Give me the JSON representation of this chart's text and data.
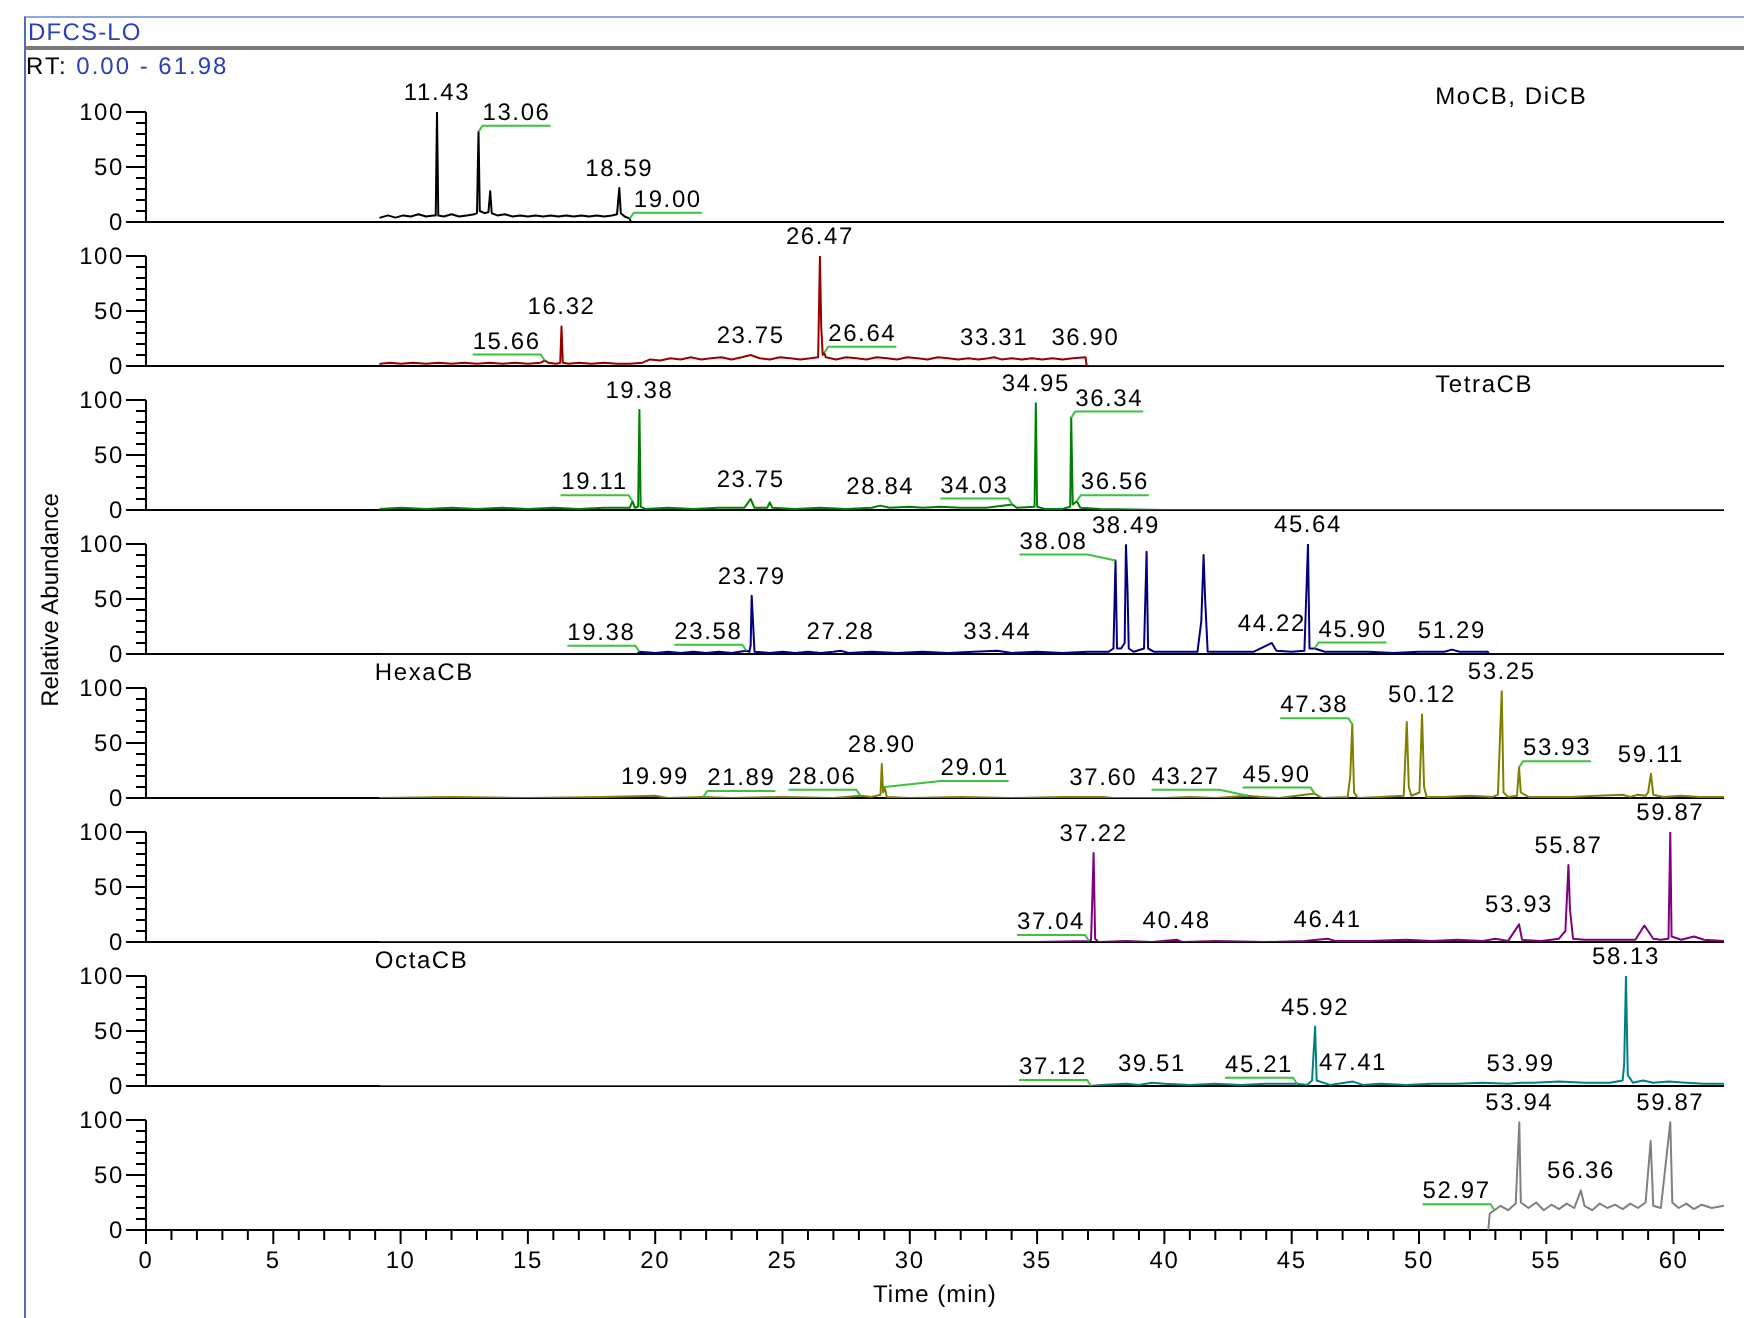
{
  "chart_data": [
    {
      "type": "line",
      "title": "DFCS-LO",
      "subtitle": "RT: 0.00 - 61.98",
      "x": [
        9.2,
        9.5,
        9.8,
        10.1,
        10.4,
        10.7,
        11.0,
        11.3,
        11.38,
        11.43,
        11.48,
        11.7,
        12.0,
        12.3,
        12.6,
        12.9,
        13.0,
        13.06,
        13.11,
        13.3,
        13.45,
        13.52,
        13.58,
        13.8,
        14.1,
        14.4,
        14.7,
        15.0,
        15.3,
        15.6,
        15.9,
        16.2,
        16.5,
        16.8,
        17.1,
        17.4,
        17.7,
        18.0,
        18.3,
        18.5,
        18.59,
        18.65,
        18.8,
        19.0,
        19.05
      ],
      "series": [
        {
          "name": "MoCB, DiCB",
          "color": "#000000",
          "values": [
            4,
            6,
            4,
            6,
            5,
            7,
            5,
            6,
            6,
            100,
            6,
            5,
            7,
            5,
            6,
            7,
            8,
            82,
            10,
            8,
            9,
            28,
            8,
            6,
            7,
            5,
            6,
            5,
            6,
            5,
            6,
            5,
            6,
            5,
            6,
            5,
            6,
            5,
            6,
            7,
            31,
            8,
            5,
            3,
            0
          ]
        }
      ],
      "xlim": [
        0,
        61.98
      ],
      "ylim": [
        0,
        100
      ],
      "yticks": [
        0,
        {
          "value": 10,
          "label": null
        },
        {
          "value": 20,
          "label": null
        },
        {
          "value": 30,
          "label": null
        },
        {
          "value": 40,
          "label": null
        },
        50,
        {
          "value": 60,
          "label": null
        },
        {
          "value": 70,
          "label": null
        },
        {
          "value": 80,
          "label": null
        },
        {
          "value": 90,
          "label": null
        },
        100
      ],
      "tick_labels": "y",
      "annotations": [
        {
          "text": "11.43",
          "x": 11.43,
          "y": 100
        },
        {
          "text": "13.06",
          "x": 13.06,
          "y": 82
        },
        {
          "text": "18.59",
          "x": 18.59,
          "y": 31
        },
        {
          "text": "19.00",
          "x": 19.0,
          "y": 3
        }
      ]
    },
    {
      "type": "line",
      "x": [
        9.2,
        9.6,
        10.0,
        10.5,
        11.0,
        11.5,
        12.0,
        12.5,
        13.0,
        13.5,
        14.0,
        14.5,
        15.0,
        15.5,
        15.66,
        15.8,
        16.1,
        16.27,
        16.32,
        16.37,
        16.6,
        17.0,
        17.5,
        18.0,
        18.5,
        19.0,
        19.5,
        19.8,
        20.2,
        20.6,
        21.0,
        21.4,
        21.8,
        22.2,
        22.6,
        23.0,
        23.4,
        23.75,
        24.1,
        24.5,
        24.9,
        25.3,
        25.7,
        26.1,
        26.4,
        26.47,
        26.52,
        26.58,
        26.64,
        26.7,
        27.1,
        27.5,
        27.9,
        28.3,
        28.7,
        29.1,
        29.5,
        29.9,
        30.3,
        30.7,
        31.1,
        31.5,
        31.9,
        32.3,
        32.7,
        33.1,
        33.31,
        33.6,
        34.0,
        34.4,
        34.8,
        35.2,
        35.6,
        36.0,
        36.4,
        36.9,
        36.95,
        61.98
      ],
      "series": [
        {
          "color": "#990000",
          "values": [
            2,
            3,
            2,
            3,
            2,
            3,
            2,
            3,
            2,
            3,
            2,
            3,
            2,
            3,
            5,
            3,
            2,
            3,
            36,
            3,
            2,
            3,
            2,
            3,
            2,
            2,
            3,
            6,
            5,
            7,
            6,
            8,
            6,
            7,
            8,
            6,
            8,
            10,
            7,
            6,
            8,
            7,
            6,
            7,
            8,
            100,
            36,
            10,
            12,
            8,
            6,
            8,
            7,
            6,
            8,
            7,
            6,
            8,
            7,
            6,
            8,
            7,
            6,
            7,
            6,
            7,
            8,
            6,
            7,
            6,
            7,
            6,
            7,
            6,
            7,
            8,
            0,
            0
          ]
        }
      ],
      "xlim": [
        0,
        61.98
      ],
      "ylim": [
        0,
        100
      ],
      "yticks": [
        0,
        {
          "value": 10,
          "label": null
        },
        {
          "value": 20,
          "label": null
        },
        {
          "value": 30,
          "label": null
        },
        {
          "value": 40,
          "label": null
        },
        50,
        {
          "value": 60,
          "label": null
        },
        {
          "value": 70,
          "label": null
        },
        {
          "value": 80,
          "label": null
        },
        {
          "value": 90,
          "label": null
        },
        100
      ],
      "tick_labels": "y",
      "annotations": [
        {
          "text": "15.66",
          "x": 15.66,
          "y": 5
        },
        {
          "text": "16.32",
          "x": 16.32,
          "y": 36
        },
        {
          "text": "23.75",
          "x": 23.75,
          "y": 10
        },
        {
          "text": "26.47",
          "x": 26.47,
          "y": 100
        },
        {
          "text": "26.64",
          "x": 26.64,
          "y": 12
        },
        {
          "text": "33.31",
          "x": 33.31,
          "y": 8
        },
        {
          "text": "36.90",
          "x": 36.9,
          "y": 8
        }
      ]
    },
    {
      "type": "line",
      "x": [
        9.2,
        10,
        11,
        12,
        13,
        14,
        15,
        16,
        17,
        18,
        19.0,
        19.11,
        19.2,
        19.33,
        19.38,
        19.43,
        19.6,
        20.5,
        21.5,
        22.5,
        23.5,
        23.75,
        23.9,
        24.4,
        24.5,
        24.6,
        25.5,
        26.5,
        27.5,
        28.5,
        28.84,
        29.2,
        30.0,
        30.5,
        31.2,
        32.0,
        33.0,
        34.03,
        34.2,
        34.9,
        34.95,
        35.0,
        35.3,
        36.0,
        36.3,
        36.34,
        36.4,
        36.56,
        36.7,
        37.5,
        40,
        45,
        50,
        55,
        61.98
      ],
      "series": [
        {
          "name": "TetraCB",
          "color": "#008000",
          "values": [
            1,
            2,
            1,
            2,
            1,
            2,
            1,
            2,
            1,
            2,
            2,
            8,
            2,
            3,
            91,
            3,
            1,
            2,
            1,
            2,
            2,
            10,
            2,
            2,
            7,
            2,
            1,
            2,
            1,
            2,
            4,
            2,
            3,
            2,
            3,
            2,
            2,
            5,
            2,
            3,
            97,
            3,
            1,
            1,
            3,
            84,
            5,
            8,
            2,
            1,
            0,
            0,
            0,
            0,
            0
          ]
        }
      ],
      "xlim": [
        0,
        61.98
      ],
      "ylim": [
        0,
        100
      ],
      "yticks": [
        0,
        {
          "value": 10,
          "label": null
        },
        {
          "value": 20,
          "label": null
        },
        {
          "value": 30,
          "label": null
        },
        {
          "value": 40,
          "label": null
        },
        50,
        {
          "value": 60,
          "label": null
        },
        {
          "value": 70,
          "label": null
        },
        {
          "value": 80,
          "label": null
        },
        {
          "value": 90,
          "label": null
        },
        100
      ],
      "tick_labels": "y",
      "annotations": [
        {
          "text": "19.11",
          "x": 19.11,
          "y": 8
        },
        {
          "text": "19.38",
          "x": 19.38,
          "y": 91
        },
        {
          "text": "23.75",
          "x": 23.75,
          "y": 10
        },
        {
          "text": "28.84",
          "x": 28.84,
          "y": 4
        },
        {
          "text": "34.03",
          "x": 34.03,
          "y": 5
        },
        {
          "text": "34.95",
          "x": 34.95,
          "y": 97
        },
        {
          "text": "36.34",
          "x": 36.34,
          "y": 84
        },
        {
          "text": "36.56",
          "x": 36.56,
          "y": 8
        }
      ]
    },
    {
      "type": "line",
      "ylabel": "Relative Abundance",
      "x": [
        9.2,
        19.3,
        19.38,
        20.0,
        20.5,
        21.0,
        21.5,
        22.0,
        22.5,
        23.0,
        23.58,
        23.7,
        23.75,
        23.79,
        23.84,
        23.9,
        24.5,
        25.0,
        25.5,
        26.0,
        26.5,
        27.0,
        27.28,
        27.6,
        28.5,
        29.5,
        30.5,
        31.5,
        32.5,
        33.44,
        34.0,
        35.0,
        36.0,
        37.0,
        37.8,
        38.0,
        38.08,
        38.14,
        38.3,
        38.44,
        38.49,
        38.55,
        38.6,
        38.8,
        39.2,
        39.3,
        39.36,
        39.6,
        40.5,
        41.3,
        41.45,
        41.54,
        41.6,
        41.7,
        42.5,
        43.5,
        44.22,
        44.4,
        45.0,
        45.5,
        45.64,
        45.7,
        45.9,
        46.3,
        47.0,
        48.0,
        49.0,
        50.0,
        51.0,
        51.29,
        51.6,
        52.7,
        52.75,
        61.98
      ],
      "series": [
        {
          "color": "#000080",
          "values": [
            0,
            0,
            2,
            1,
            2,
            1,
            2,
            1,
            2,
            1,
            3,
            2,
            8,
            53,
            30,
            2,
            1,
            2,
            1,
            2,
            1,
            2,
            3,
            1,
            2,
            1,
            2,
            1,
            2,
            3,
            1,
            2,
            1,
            2,
            2,
            5,
            85,
            5,
            5,
            10,
            99,
            60,
            5,
            2,
            5,
            93,
            5,
            2,
            2,
            2,
            30,
            90,
            50,
            2,
            2,
            2,
            10,
            3,
            2,
            3,
            100,
            5,
            5,
            2,
            2,
            2,
            1,
            2,
            2,
            4,
            2,
            2,
            0,
            0
          ]
        }
      ],
      "xlim": [
        0,
        61.98
      ],
      "ylim": [
        0,
        100
      ],
      "yticks": [
        0,
        {
          "value": 10,
          "label": null
        },
        {
          "value": 20,
          "label": null
        },
        {
          "value": 30,
          "label": null
        },
        {
          "value": 40,
          "label": null
        },
        50,
        {
          "value": 60,
          "label": null
        },
        {
          "value": 70,
          "label": null
        },
        {
          "value": 80,
          "label": null
        },
        {
          "value": 90,
          "label": null
        },
        100
      ],
      "tick_labels": "y",
      "annotations": [
        {
          "text": "19.38",
          "x": 19.38,
          "y": 2
        },
        {
          "text": "23.58",
          "x": 23.58,
          "y": 3
        },
        {
          "text": "23.79",
          "x": 23.79,
          "y": 53
        },
        {
          "text": "27.28",
          "x": 27.28,
          "y": 3
        },
        {
          "text": "33.44",
          "x": 33.44,
          "y": 3
        },
        {
          "text": "38.08",
          "x": 38.08,
          "y": 85
        },
        {
          "text": "38.49",
          "x": 38.49,
          "y": 99
        },
        {
          "text": "44.22",
          "x": 44.22,
          "y": 10
        },
        {
          "text": "45.64",
          "x": 45.64,
          "y": 100
        },
        {
          "text": "45.90",
          "x": 45.9,
          "y": 5
        },
        {
          "text": "51.29",
          "x": 51.29,
          "y": 4
        }
      ]
    },
    {
      "type": "line",
      "x": [
        9.2,
        12,
        15,
        18,
        19.99,
        20.5,
        21.89,
        23,
        25,
        27,
        28.06,
        28.5,
        28.85,
        28.9,
        28.95,
        29.01,
        29.1,
        30,
        32,
        34,
        36,
        37.6,
        38,
        40,
        41,
        42,
        43.27,
        43.8,
        44.5,
        45.9,
        46.2,
        47.2,
        47.3,
        47.38,
        47.45,
        47.6,
        48.5,
        49.4,
        49.52,
        49.6,
        49.7,
        50.02,
        50.12,
        50.2,
        50.3,
        51,
        52,
        52.9,
        53.1,
        53.19,
        53.25,
        53.32,
        53.5,
        53.85,
        53.93,
        54.0,
        54.3,
        55,
        56,
        57,
        58,
        58.3,
        58.6,
        58.9,
        59.0,
        59.11,
        59.2,
        59.6,
        60.3,
        61,
        61.98
      ],
      "series": [
        {
          "name": "HexaCB",
          "color": "#808000",
          "values": [
            0,
            1,
            0,
            1,
            2,
            0,
            1,
            0,
            1,
            0,
            2,
            1,
            3,
            31,
            5,
            10,
            1,
            0,
            1,
            0,
            1,
            1,
            0,
            0,
            1,
            0,
            2,
            1,
            0,
            4,
            0,
            1,
            20,
            67,
            5,
            0,
            1,
            2,
            69,
            10,
            2,
            5,
            76,
            10,
            1,
            1,
            2,
            1,
            3,
            60,
            97,
            5,
            1,
            2,
            28,
            5,
            1,
            1,
            1,
            2,
            3,
            1,
            3,
            2,
            5,
            22,
            3,
            1,
            2,
            1,
            1
          ]
        }
      ],
      "xlim": [
        0,
        61.98
      ],
      "ylim": [
        0,
        100
      ],
      "yticks": [
        0,
        {
          "value": 10,
          "label": null
        },
        {
          "value": 20,
          "label": null
        },
        {
          "value": 30,
          "label": null
        },
        {
          "value": 40,
          "label": null
        },
        50,
        {
          "value": 60,
          "label": null
        },
        {
          "value": 70,
          "label": null
        },
        {
          "value": 80,
          "label": null
        },
        {
          "value": 90,
          "label": null
        },
        100
      ],
      "tick_labels": "y",
      "annotations": [
        {
          "text": "19.99",
          "x": 19.99,
          "y": 2
        },
        {
          "text": "21.89",
          "x": 21.89,
          "y": 1
        },
        {
          "text": "28.06",
          "x": 28.06,
          "y": 2
        },
        {
          "text": "28.90",
          "x": 28.9,
          "y": 31
        },
        {
          "text": "29.01",
          "x": 29.01,
          "y": 10
        },
        {
          "text": "37.60",
          "x": 37.6,
          "y": 1
        },
        {
          "text": "43.27",
          "x": 43.27,
          "y": 2
        },
        {
          "text": "45.90",
          "x": 45.9,
          "y": 4
        },
        {
          "text": "47.38",
          "x": 47.38,
          "y": 67
        },
        {
          "text": "50.12",
          "x": 50.12,
          "y": 76
        },
        {
          "text": "53.25",
          "x": 53.25,
          "y": 97
        },
        {
          "text": "53.93",
          "x": 53.93,
          "y": 28
        },
        {
          "text": "59.11",
          "x": 59.11,
          "y": 22
        }
      ]
    },
    {
      "type": "line",
      "x": [
        9.2,
        15,
        20,
        25,
        30,
        35,
        37.04,
        37.12,
        37.17,
        37.22,
        37.28,
        37.4,
        38.5,
        39.5,
        40.48,
        40.7,
        42,
        44,
        45.5,
        46.0,
        46.41,
        46.7,
        48,
        49.5,
        50.5,
        51.5,
        52.5,
        53.0,
        53.5,
        53.93,
        54.05,
        54.8,
        55.5,
        55.75,
        55.87,
        55.93,
        56.05,
        56.5,
        57.5,
        58.5,
        58.85,
        59.0,
        59.2,
        59.5,
        59.8,
        59.87,
        59.92,
        60.3,
        60.8,
        61.2,
        61.98
      ],
      "series": [
        {
          "color": "#800080",
          "values": [
            0,
            0,
            0,
            0,
            0,
            0,
            1,
            2,
            40,
            81,
            3,
            0,
            1,
            0,
            2,
            0,
            1,
            0,
            1,
            2,
            3,
            1,
            1,
            2,
            1,
            2,
            1,
            3,
            1,
            16,
            2,
            1,
            3,
            10,
            70,
            30,
            3,
            2,
            2,
            2,
            15,
            10,
            3,
            2,
            3,
            100,
            5,
            2,
            5,
            2,
            1
          ]
        }
      ],
      "xlim": [
        0,
        61.98
      ],
      "ylim": [
        0,
        100
      ],
      "yticks": [
        0,
        {
          "value": 10,
          "label": null
        },
        {
          "value": 20,
          "label": null
        },
        {
          "value": 30,
          "label": null
        },
        {
          "value": 40,
          "label": null
        },
        50,
        {
          "value": 60,
          "label": null
        },
        {
          "value": 70,
          "label": null
        },
        {
          "value": 80,
          "label": null
        },
        {
          "value": 90,
          "label": null
        },
        100
      ],
      "tick_labels": "y",
      "annotations": [
        {
          "text": "37.04",
          "x": 37.04,
          "y": 1
        },
        {
          "text": "37.22",
          "x": 37.22,
          "y": 81
        },
        {
          "text": "40.48",
          "x": 40.48,
          "y": 2
        },
        {
          "text": "46.41",
          "x": 46.41,
          "y": 3
        },
        {
          "text": "53.93",
          "x": 53.93,
          "y": 16
        },
        {
          "text": "55.87",
          "x": 55.87,
          "y": 70
        },
        {
          "text": "59.87",
          "x": 59.87,
          "y": 100
        }
      ]
    },
    {
      "type": "line",
      "x": [
        9.2,
        37.0,
        37.12,
        37.5,
        38.5,
        39.0,
        39.51,
        40.0,
        41,
        42,
        43,
        44,
        45.21,
        45.6,
        45.8,
        45.86,
        45.92,
        45.98,
        46.5,
        47.41,
        47.8,
        48.5,
        49.5,
        50.5,
        51.5,
        52.5,
        53.5,
        53.99,
        54.5,
        55.5,
        56.5,
        57.5,
        58.0,
        58.06,
        58.13,
        58.2,
        58.4,
        58.8,
        59.2,
        59.8,
        60.5,
        61.2,
        61.98
      ],
      "series": [
        {
          "name": "OctaCB",
          "color": "#008080",
          "values": [
            0,
            0,
            0,
            1,
            2,
            1,
            3,
            2,
            1,
            2,
            1,
            2,
            2,
            1,
            5,
            30,
            54,
            5,
            1,
            4,
            1,
            2,
            1,
            2,
            2,
            3,
            2,
            3,
            3,
            4,
            3,
            3,
            5,
            20,
            100,
            10,
            3,
            5,
            3,
            4,
            3,
            2,
            2
          ]
        }
      ],
      "xlim": [
        0,
        61.98
      ],
      "ylim": [
        0,
        100
      ],
      "yticks": [
        0,
        {
          "value": 10,
          "label": null
        },
        {
          "value": 20,
          "label": null
        },
        {
          "value": 30,
          "label": null
        },
        {
          "value": 40,
          "label": null
        },
        50,
        {
          "value": 60,
          "label": null
        },
        {
          "value": 70,
          "label": null
        },
        {
          "value": 80,
          "label": null
        },
        {
          "value": 90,
          "label": null
        },
        100
      ],
      "tick_labels": "y",
      "annotations": [
        {
          "text": "37.12",
          "x": 37.12,
          "y": 0
        },
        {
          "text": "39.51",
          "x": 39.51,
          "y": 3
        },
        {
          "text": "45.21",
          "x": 45.21,
          "y": 2
        },
        {
          "text": "45.92",
          "x": 45.92,
          "y": 54
        },
        {
          "text": "47.41",
          "x": 47.41,
          "y": 4
        },
        {
          "text": "53.99",
          "x": 53.99,
          "y": 3
        },
        {
          "text": "58.13",
          "x": 58.13,
          "y": 100
        }
      ]
    },
    {
      "type": "line",
      "xlabel": "Time (min)",
      "x": [
        52.72,
        52.78,
        52.97,
        53.2,
        53.5,
        53.8,
        53.94,
        54.0,
        54.3,
        54.6,
        54.9,
        55.2,
        55.5,
        55.8,
        56.1,
        56.36,
        56.5,
        56.8,
        57.1,
        57.4,
        57.7,
        58.0,
        58.3,
        58.6,
        58.9,
        59.1,
        59.2,
        59.5,
        59.87,
        59.95,
        60.2,
        60.5,
        60.8,
        61.1,
        61.5,
        61.98
      ],
      "series": [
        {
          "color": "#808080",
          "values": [
            0,
            15,
            18,
            22,
            18,
            24,
            98,
            25,
            20,
            25,
            18,
            23,
            19,
            24,
            20,
            36,
            22,
            18,
            24,
            20,
            23,
            19,
            24,
            20,
            25,
            81,
            22,
            20,
            98,
            25,
            20,
            24,
            19,
            23,
            20,
            22
          ]
        }
      ],
      "xlim": [
        0,
        61.98
      ],
      "ylim": [
        0,
        100
      ],
      "xticks": [
        0,
        {
          "value": 1,
          "label": null
        },
        {
          "value": 2,
          "label": null
        },
        {
          "value": 3,
          "label": null
        },
        {
          "value": 4,
          "label": null
        },
        5,
        {
          "value": 6,
          "label": null
        },
        {
          "value": 7,
          "label": null
        },
        {
          "value": 8,
          "label": null
        },
        {
          "value": 9,
          "label": null
        },
        10,
        {
          "value": 11,
          "label": null
        },
        {
          "value": 12,
          "label": null
        },
        {
          "value": 13,
          "label": null
        },
        {
          "value": 14,
          "label": null
        },
        15,
        {
          "value": 16,
          "label": null
        },
        {
          "value": 17,
          "label": null
        },
        {
          "value": 18,
          "label": null
        },
        {
          "value": 19,
          "label": null
        },
        20,
        {
          "value": 21,
          "label": null
        },
        {
          "value": 22,
          "label": null
        },
        {
          "value": 23,
          "label": null
        },
        {
          "value": 24,
          "label": null
        },
        25,
        {
          "value": 26,
          "label": null
        },
        {
          "value": 27,
          "label": null
        },
        {
          "value": 28,
          "label": null
        },
        {
          "value": 29,
          "label": null
        },
        30,
        {
          "value": 31,
          "label": null
        },
        {
          "value": 32,
          "label": null
        },
        {
          "value": 33,
          "label": null
        },
        {
          "value": 34,
          "label": null
        },
        35,
        {
          "value": 36,
          "label": null
        },
        {
          "value": 37,
          "label": null
        },
        {
          "value": 38,
          "label": null
        },
        {
          "value": 39,
          "label": null
        },
        40,
        {
          "value": 41,
          "label": null
        },
        {
          "value": 42,
          "label": null
        },
        {
          "value": 43,
          "label": null
        },
        {
          "value": 44,
          "label": null
        },
        45,
        {
          "value": 46,
          "label": null
        },
        {
          "value": 47,
          "label": null
        },
        {
          "value": 48,
          "label": null
        },
        {
          "value": 49,
          "label": null
        },
        50,
        {
          "value": 51,
          "label": null
        },
        {
          "value": 52,
          "label": null
        },
        {
          "value": 53,
          "label": null
        },
        {
          "value": 54,
          "label": null
        },
        55,
        {
          "value": 56,
          "label": null
        },
        {
          "value": 57,
          "label": null
        },
        {
          "value": 58,
          "label": null
        },
        {
          "value": 59,
          "label": null
        },
        60,
        {
          "value": 61,
          "label": null
        }
      ],
      "yticks": [
        0,
        {
          "value": 10,
          "label": null
        },
        {
          "value": 20,
          "label": null
        },
        {
          "value": 30,
          "label": null
        },
        {
          "value": 40,
          "label": null
        },
        50,
        {
          "value": 60,
          "label": null
        },
        {
          "value": 70,
          "label": null
        },
        {
          "value": 80,
          "label": null
        },
        {
          "value": 90,
          "label": null
        },
        100
      ],
      "annotations": [
        {
          "text": "52.97",
          "x": 52.97,
          "y": 18
        },
        {
          "text": "53.94",
          "x": 53.94,
          "y": 98
        },
        {
          "text": "56.36",
          "x": 56.36,
          "y": 36
        },
        {
          "text": "59.87",
          "x": 59.87,
          "y": 98
        }
      ]
    }
  ]
}
